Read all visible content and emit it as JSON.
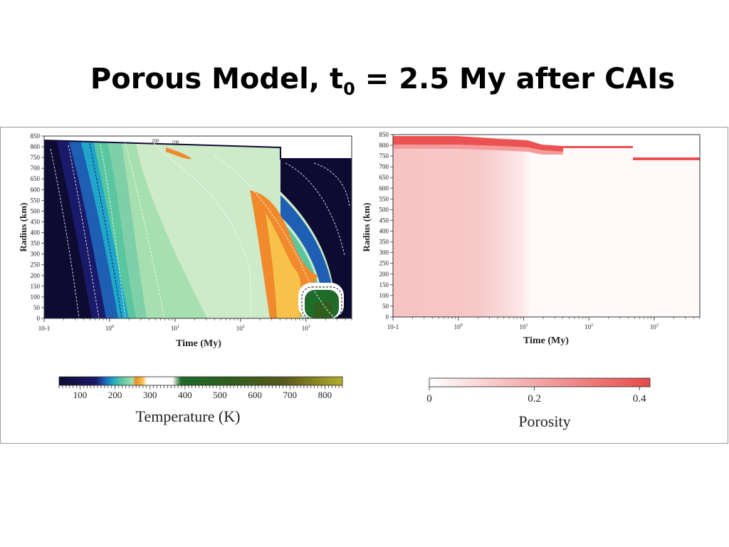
{
  "slide": {
    "title_main": "Porous Model, t",
    "title_sub": "0",
    "title_rest": " = 2.5 My after CAIs"
  },
  "chart_data": [
    {
      "type": "heatmap",
      "ylabel": "Radius (km)",
      "xlabel": "Time (My)",
      "x_scale": "log",
      "xlim": [
        0.1,
        5000
      ],
      "ylim": [
        0,
        850
      ],
      "x_ticks": [
        "10-1",
        "10",
        "10",
        "10",
        "10"
      ],
      "x_tick_exponents": [
        "",
        "0",
        "1",
        "2",
        "3"
      ],
      "y_ticks": [
        850,
        800,
        750,
        700,
        650,
        600,
        550,
        500,
        450,
        400,
        350,
        300,
        250,
        200,
        150,
        100,
        50,
        0
      ],
      "contour_labels": [
        "200",
        "100"
      ],
      "colorbar": {
        "label": "Temperature (K)",
        "ticks": [
          100,
          200,
          300,
          400,
          500,
          600,
          700,
          800
        ],
        "range": [
          40,
          850
        ],
        "colors": [
          "#0e0b33",
          "#1a1a6a",
          "#1e5fb3",
          "#1fa6c8",
          "#59c6a0",
          "#a6dfb0",
          "#cdebc9",
          "#f08a2c",
          "#f7c24a",
          "#ffffff",
          "#1f6b2a",
          "#2f5e1e",
          "#5a5a1e",
          "#8a8a1e",
          "#b3ae2a"
        ]
      }
    },
    {
      "type": "heatmap",
      "ylabel": "Radius (km)",
      "xlabel": "Time (My)",
      "x_scale": "log",
      "xlim": [
        0.1,
        5000
      ],
      "ylim": [
        0,
        850
      ],
      "x_ticks": [
        "10-1",
        "10",
        "10",
        "10",
        "10"
      ],
      "x_tick_exponents": [
        "",
        "0",
        "1",
        "2",
        "3"
      ],
      "y_ticks": [
        850,
        800,
        750,
        700,
        650,
        600,
        550,
        500,
        450,
        400,
        350,
        300,
        250,
        200,
        150,
        100,
        50,
        0
      ],
      "colorbar": {
        "label": "Porosity",
        "ticks": [
          "0",
          "0.2",
          "0.4"
        ],
        "range": [
          0,
          0.42
        ],
        "colors": [
          "#ffffff",
          "#e84a4a"
        ]
      }
    }
  ]
}
